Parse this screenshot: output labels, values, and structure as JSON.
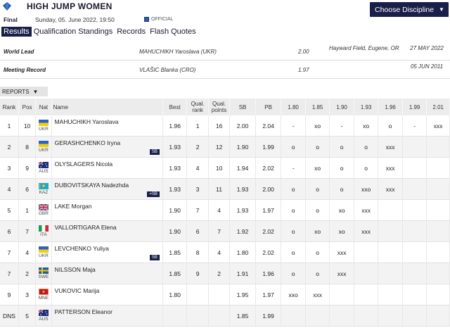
{
  "header": {
    "title": "HIGH JUMP WOMEN",
    "phase": "Final",
    "date": "Sunday, 05. June 2022, 19:50",
    "official": "OFFICIAL",
    "choose_label": "Choose Discipline"
  },
  "tabs": [
    "Results",
    "Qualification Standings",
    "Records",
    "Flash Quotes"
  ],
  "records": [
    {
      "label": "World Lead",
      "athlete": "MAHUCHIKH Yaroslava (UKR)",
      "mark": "2.00",
      "venue": "Hayward Field, Eugene, OR",
      "date": "27 MAY 2022"
    },
    {
      "label": "Meeting Record",
      "athlete": "VLAŠIC Blanka (CRO)",
      "mark": "1.97",
      "venue": "",
      "date": "05 JUN 2011"
    }
  ],
  "reports_label": "REPORTS",
  "columns": {
    "rank": "Rank",
    "pos": "Pos",
    "nat": "Nat",
    "name": "Name",
    "best": "Best",
    "qual_rank": "Qual. rank",
    "qual_points": "Qual. points",
    "sb": "SB",
    "pb": "PB",
    "heights": [
      "1.80",
      "1.85",
      "1.90",
      "1.93",
      "1.96",
      "1.99",
      "2.01"
    ]
  },
  "athletes": [
    {
      "rank": "1",
      "pos": "10",
      "nat": "UKR",
      "name": "MAHUCHIKH Yaroslava",
      "badge": "",
      "best": "1.96",
      "qrank": "1",
      "qpts": "16",
      "sb": "2.00",
      "pb": "2.04",
      "attempts": [
        "-",
        "xo",
        "-",
        "xo",
        "o",
        "-",
        "xxx"
      ]
    },
    {
      "rank": "2",
      "pos": "8",
      "nat": "UKR",
      "name": "GERASHCHENKO Iryna",
      "badge": "SB",
      "best": "1.93",
      "qrank": "2",
      "qpts": "12",
      "sb": "1.90",
      "pb": "1.99",
      "attempts": [
        "o",
        "o",
        "o",
        "o",
        "xxx",
        "",
        ""
      ]
    },
    {
      "rank": "3",
      "pos": "9",
      "nat": "AUS",
      "name": "OLYSLAGERS Nicola",
      "badge": "",
      "best": "1.93",
      "qrank": "4",
      "qpts": "10",
      "sb": "1.94",
      "pb": "2.02",
      "attempts": [
        "-",
        "xo",
        "o",
        "o",
        "xxx",
        "",
        ""
      ]
    },
    {
      "rank": "4",
      "pos": "6",
      "nat": "KAZ",
      "name": "DUBOVITSKAYA Nadezhda",
      "badge": "=SB",
      "best": "1.93",
      "qrank": "3",
      "qpts": "11",
      "sb": "1.93",
      "pb": "2.00",
      "attempts": [
        "o",
        "o",
        "o",
        "xxo",
        "xxx",
        "",
        ""
      ]
    },
    {
      "rank": "5",
      "pos": "1",
      "nat": "GBR",
      "name": "LAKE Morgan",
      "badge": "",
      "best": "1.90",
      "qrank": "7",
      "qpts": "4",
      "sb": "1.93",
      "pb": "1.97",
      "attempts": [
        "o",
        "o",
        "xo",
        "xxx",
        "",
        "",
        ""
      ]
    },
    {
      "rank": "6",
      "pos": "7",
      "nat": "ITA",
      "name": "VALLORTIGARA Elena",
      "badge": "",
      "best": "1.90",
      "qrank": "6",
      "qpts": "7",
      "sb": "1.92",
      "pb": "2.02",
      "attempts": [
        "o",
        "xo",
        "xo",
        "xxx",
        "",
        "",
        ""
      ]
    },
    {
      "rank": "7",
      "pos": "4",
      "nat": "UKR",
      "name": "LEVCHENKO Yuliya",
      "badge": "SB",
      "best": "1.85",
      "qrank": "8",
      "qpts": "4",
      "sb": "1.80",
      "pb": "2.02",
      "attempts": [
        "o",
        "o",
        "xxx",
        "",
        "",
        "",
        ""
      ]
    },
    {
      "rank": "7",
      "pos": "2",
      "nat": "SWE",
      "name": "NILSSON Maja",
      "badge": "",
      "best": "1.85",
      "qrank": "9",
      "qpts": "2",
      "sb": "1.91",
      "pb": "1.96",
      "attempts": [
        "o",
        "o",
        "xxx",
        "",
        "",
        "",
        ""
      ]
    },
    {
      "rank": "9",
      "pos": "3",
      "nat": "MNE",
      "name": "VUKOVIC Marija",
      "badge": "",
      "best": "1.80",
      "qrank": "",
      "qpts": "",
      "sb": "1.95",
      "pb": "1.97",
      "attempts": [
        "xxo",
        "xxx",
        "",
        "",
        "",
        "",
        ""
      ]
    },
    {
      "rank": "DNS",
      "pos": "5",
      "nat": "AUS",
      "name": "PATTERSON Eleanor",
      "badge": "",
      "best": "",
      "qrank": "",
      "qpts": "",
      "sb": "1.85",
      "pb": "1.99",
      "attempts": [
        "",
        "",
        "",
        "",
        "",
        "",
        ""
      ]
    }
  ],
  "colors": {
    "navy": "#18204a",
    "header_bg": "#ececec"
  }
}
